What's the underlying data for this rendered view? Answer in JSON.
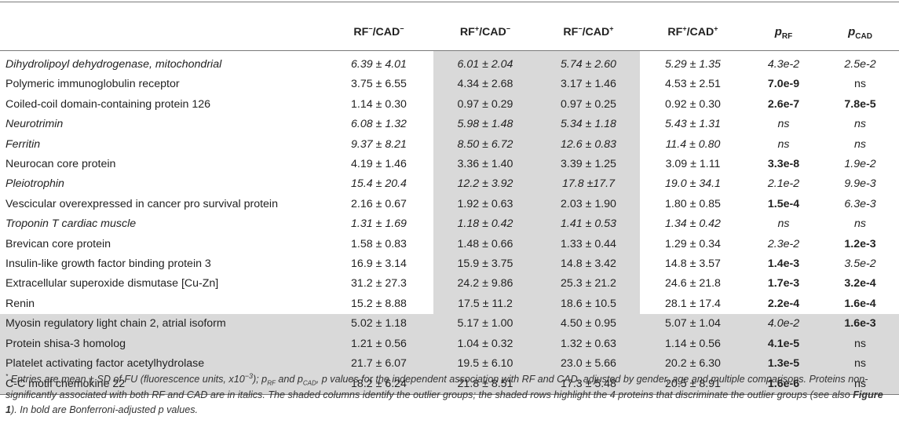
{
  "headers": {
    "c1": {
      "a": "RF",
      "a_sup": "−",
      "b": "/CAD",
      "b_sup": "−"
    },
    "c2": {
      "a": "RF",
      "a_sup": "+",
      "b": "/CAD",
      "b_sup": "−"
    },
    "c3": {
      "a": "RF",
      "a_sup": "−",
      "b": "/CAD",
      "b_sup": "+"
    },
    "c4": {
      "a": "RF",
      "a_sup": "+",
      "b": "/CAD",
      "b_sup": "+"
    },
    "p1": {
      "p": "p",
      "sub": "RF"
    },
    "p2": {
      "p": "p",
      "sub": "CAD"
    }
  },
  "rows": [
    {
      "name": "Dihydrolipoyl dehydrogenase, mitochondrial",
      "v1": "6.39 ± 4.01",
      "v2": "6.01 ± 2.04",
      "v3": "5.74 ± 2.60",
      "v4": "5.29 ± 1.35",
      "p_rf": "4.3e-2",
      "p_cad": "2.5e-2"
    },
    {
      "name": "Polymeric immunoglobulin receptor",
      "v1": "3.75 ± 6.55",
      "v2": "4.34 ± 2.68",
      "v3": "3.17 ± 1.46",
      "v4": "4.53 ± 2.51",
      "p_rf": "7.0e-9",
      "p_cad": "ns"
    },
    {
      "name": "Coiled-coil domain-containing protein 126",
      "v1": "1.14 ± 0.30",
      "v2": "0.97 ± 0.29",
      "v3": "0.97 ± 0.25",
      "v4": "0.92 ± 0.30",
      "p_rf": "2.6e-7",
      "p_cad": "7.8e-5"
    },
    {
      "name": "Neurotrimin",
      "v1": "6.08 ± 1.32",
      "v2": "5.98 ± 1.48",
      "v3": "5.34 ± 1.18",
      "v4": "5.43 ± 1.31",
      "p_rf": "ns",
      "p_cad": "ns"
    },
    {
      "name": "Ferritin",
      "v1": "9.37 ± 8.21",
      "v2": "8.50 ± 6.72",
      "v3": "12.6 ± 0.83",
      "v4": "11.4 ± 0.80",
      "p_rf": "ns",
      "p_cad": "ns"
    },
    {
      "name": "Neurocan core protein",
      "v1": "4.19 ± 1.46",
      "v2": "3.36 ± 1.40",
      "v3": "3.39 ± 1.25",
      "v4": "3.09 ± 1.11",
      "p_rf": "3.3e-8",
      "p_cad": "1.9e-2"
    },
    {
      "name": "Pleiotrophin",
      "v1": "15.4 ± 20.4",
      "v2": "12.2 ± 3.92",
      "v3": "17.8 ±17.7",
      "v4": "19.0 ± 34.1",
      "p_rf": "2.1e-2",
      "p_cad": "9.9e-3"
    },
    {
      "name": "Vescicular overexpressed in cancer pro survival protein",
      "v1": "2.16 ± 0.67",
      "v2": "1.92 ± 0.63",
      "v3": "2.03 ± 1.90",
      "v4": "1.80 ± 0.85",
      "p_rf": "1.5e-4",
      "p_cad": "6.3e-3"
    },
    {
      "name": "Troponin T cardiac muscle",
      "v1": "1.31 ± 1.69",
      "v2": "1.18 ± 0.42",
      "v3": "1.41 ± 0.53",
      "v4": "1.34 ± 0.42",
      "p_rf": "ns",
      "p_cad": "ns"
    },
    {
      "name": "Brevican core protein",
      "v1": "1.58 ± 0.83",
      "v2": "1.48 ± 0.66",
      "v3": "1.33 ± 0.44",
      "v4": "1.29 ± 0.34",
      "p_rf": "2.3e-2",
      "p_cad": "1.2e-3"
    },
    {
      "name": "Insulin-like growth factor binding protein 3",
      "v1": "16.9 ± 3.14",
      "v2": "15.9 ± 3.75",
      "v3": "14.8 ± 3.42",
      "v4": "14.8 ± 3.57",
      "p_rf": "1.4e-3",
      "p_cad": "3.5e-2"
    },
    {
      "name": "Extracellular superoxide dismutase [Cu-Zn]",
      "v1": "31.2 ± 27.3",
      "v2": "24.2 ± 9.86",
      "v3": "25.3 ± 21.2",
      "v4": "24.6 ± 21.8",
      "p_rf": "1.7e-3",
      "p_cad": "3.2e-4"
    },
    {
      "name": "Renin",
      "v1": "15.2 ± 8.88",
      "v2": "17.5 ± 11.2",
      "v3": "18.6 ± 10.5",
      "v4": "28.1 ± 17.4",
      "p_rf": "2.2e-4",
      "p_cad": "1.6e-4"
    },
    {
      "name": "Myosin regulatory light chain 2, atrial isoform",
      "v1": "5.02 ± 1.18",
      "v2": "5.17 ± 1.00",
      "v3": "4.50 ± 0.95",
      "v4": "5.07 ± 1.04",
      "p_rf": "4.0e-2",
      "p_cad": "1.6e-3"
    },
    {
      "name": "Protein shisa-3 homolog",
      "v1": "1.21 ± 0.56",
      "v2": "1.04 ± 0.32",
      "v3": "1.32 ± 0.63",
      "v4": "1.14 ± 0.56",
      "p_rf": "4.1e-5",
      "p_cad": "ns"
    },
    {
      "name": "Platelet activating factor acetylhydrolase",
      "v1": "21.7 ± 6.07",
      "v2": "19.5 ± 6.10",
      "v3": "23.0 ± 5.66",
      "v4": "20.2 ± 6.30",
      "p_rf": "1.3e-5",
      "p_cad": "ns"
    },
    {
      "name": "C-C motif chemokine 22",
      "v1": "18.2 ± 6.24",
      "v2": "21.8 ± 8.51",
      "v3": "17.3 ± 5.48",
      "v4": "20.5 ± 8.91",
      "p_rf": "1.6e-6",
      "p_cad": "ns"
    }
  ],
  "footnote": {
    "mark": "*",
    "t1": " Entries are mean ± SD of FU (fluorescence units, x10",
    "exp": "−3",
    "t2": "); p",
    "sub_rf": "RF",
    "t3": " and p",
    "sub_cad": "CAD",
    "t4": ", p values for the independent association with RF and CAD, adjusted by gender, age and multiple comparisons. Proteins non-significantly associated with both RF and CAD are in italics. The shaded columns identify the outlier groups; the shaded rows highlight the 4 proteins that discriminate the outlier groups (see also ",
    "fig": "Figure 1",
    "t5": "). In bold are Bonferroni-adjusted p values."
  },
  "colors": {
    "shade": "#d9d9d9",
    "rule": "#7a7a7a",
    "text": "#222222"
  }
}
